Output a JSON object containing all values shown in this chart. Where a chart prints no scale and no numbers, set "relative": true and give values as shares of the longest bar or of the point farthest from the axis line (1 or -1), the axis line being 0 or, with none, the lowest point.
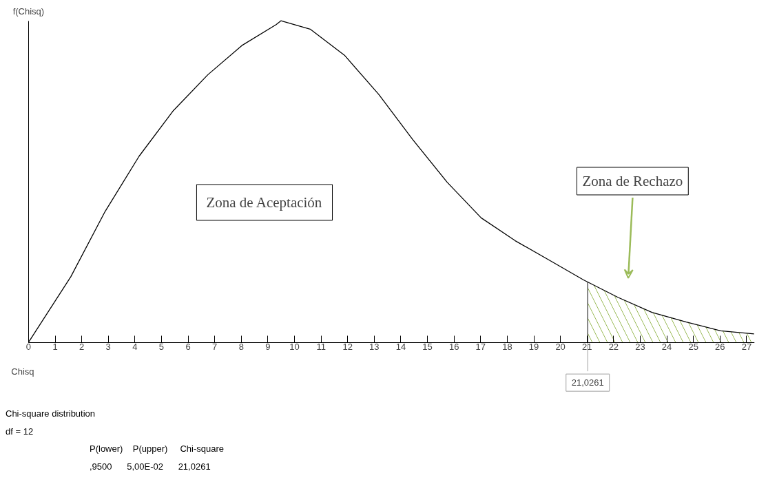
{
  "chart_data": {
    "type": "line",
    "relative": true,
    "xlabel": "Chisq",
    "ylabel": "f(Chisq)",
    "xlim": [
      0,
      27.3
    ],
    "xticks": [
      0,
      1,
      2,
      3,
      4,
      5,
      6,
      7,
      8,
      9,
      10,
      11,
      12,
      13,
      14,
      15,
      16,
      17,
      18,
      19,
      20,
      21,
      22,
      23,
      24,
      25,
      26,
      27
    ],
    "series": [
      {
        "color": "#000000",
        "x": [
          0,
          1.59,
          2.88,
          4.16,
          5.45,
          6.74,
          8.02,
          9.31,
          9.49,
          10.59,
          11.88,
          13.17,
          14.45,
          15.74,
          17.02,
          18.3,
          19.59,
          20.87,
          22.16,
          23.44,
          24.73,
          26.02,
          27.28
        ],
        "values": [
          0,
          0.204,
          0.407,
          0.579,
          0.721,
          0.832,
          0.923,
          0.988,
          1,
          0.974,
          0.893,
          0.771,
          0.63,
          0.498,
          0.387,
          0.316,
          0.255,
          0.194,
          0.14,
          0.093,
          0.063,
          0.036,
          0.026
        ]
      },
      {
        "type": "area",
        "color": "#9bbb59",
        "x": [
          21.0261,
          22.16,
          23.44,
          24.73,
          26.02,
          27.28
        ],
        "values": [
          0.187,
          0.14,
          0.093,
          0.063,
          0.036,
          0.026
        ]
      }
    ],
    "ref_lines": [
      {
        "axis": "x",
        "value": 21.0261,
        "label": "21,0261",
        "color": "#000000"
      }
    ],
    "annotations": [
      "Zona de Aceptación",
      "Zona de Rechazo",
      "Chi-square distribution",
      "df = 12",
      "P(lower)    P(upper)     Chi-square",
      ",9500      5,00E-02      21,0261"
    ],
    "grid": false,
    "marker": "none",
    "line_style": "solid"
  }
}
